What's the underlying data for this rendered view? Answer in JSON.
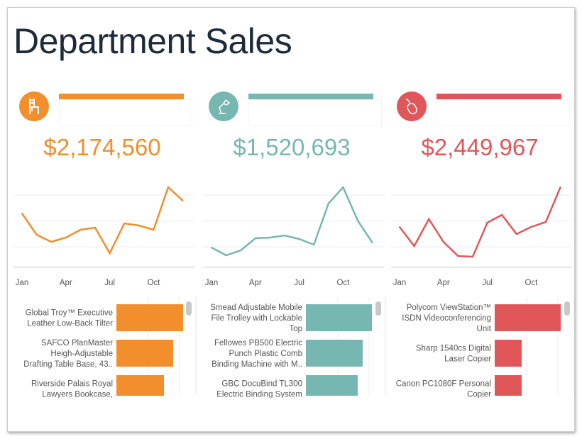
{
  "title": "Department Sales",
  "months": [
    "Jan",
    "Apr",
    "Jul",
    "Oct"
  ],
  "panels": [
    {
      "name": "furniture",
      "icon": "chair-icon",
      "color": "#f28e2b",
      "total": "$2,174,560",
      "monthly": [
        90,
        60,
        50,
        56,
        67,
        70,
        34,
        76,
        73,
        67,
        127,
        108
      ],
      "products": [
        {
          "lines": [
            "Global Troy™ Executive",
            "Leather Low-Back Tilter"
          ],
          "value": 94
        },
        {
          "lines": [
            "SAFCO PlanMaster",
            "Heigh-Adjustable",
            "Drafting Table Base, 43.."
          ],
          "value": 80
        },
        {
          "lines": [
            "Riverside Palais Royal",
            "Lawyers Bookcase,"
          ],
          "value": 67
        }
      ]
    },
    {
      "name": "office-supplies",
      "icon": "desk-lamp-icon",
      "color": "#76b7b2",
      "total": "$1,520,693",
      "monthly": [
        42,
        31,
        38,
        55,
        56,
        59,
        54,
        46,
        104,
        127,
        80,
        49
      ],
      "products": [
        {
          "lines": [
            "Smead Adjustable Mobile",
            "File Trolley with Lockable",
            "Top"
          ],
          "value": 93
        },
        {
          "lines": [
            "Fellowes PB500 Electric",
            "Punch Plastic Comb",
            "Binding Machine with M.."
          ],
          "value": 80
        },
        {
          "lines": [
            "GBC DocuBind TL300",
            "Electric Binding System"
          ],
          "value": 73
        }
      ]
    },
    {
      "name": "technology",
      "icon": "mouse-icon",
      "color": "#e15759",
      "total": "$2,449,967",
      "monthly": [
        71,
        44,
        82,
        50,
        30,
        29,
        77,
        88,
        61,
        71,
        78,
        127
      ],
      "products": [
        {
          "lines": [
            "Polycom ViewStation™",
            "ISDN Videoconferencing",
            "Unit"
          ],
          "value": 93
        },
        {
          "lines": [
            "Sharp 1540cs Digital",
            "Laser Copier"
          ],
          "value": 38
        },
        {
          "lines": [
            "Canon PC1080F Personal",
            "Copier"
          ],
          "value": 38
        }
      ]
    }
  ]
}
